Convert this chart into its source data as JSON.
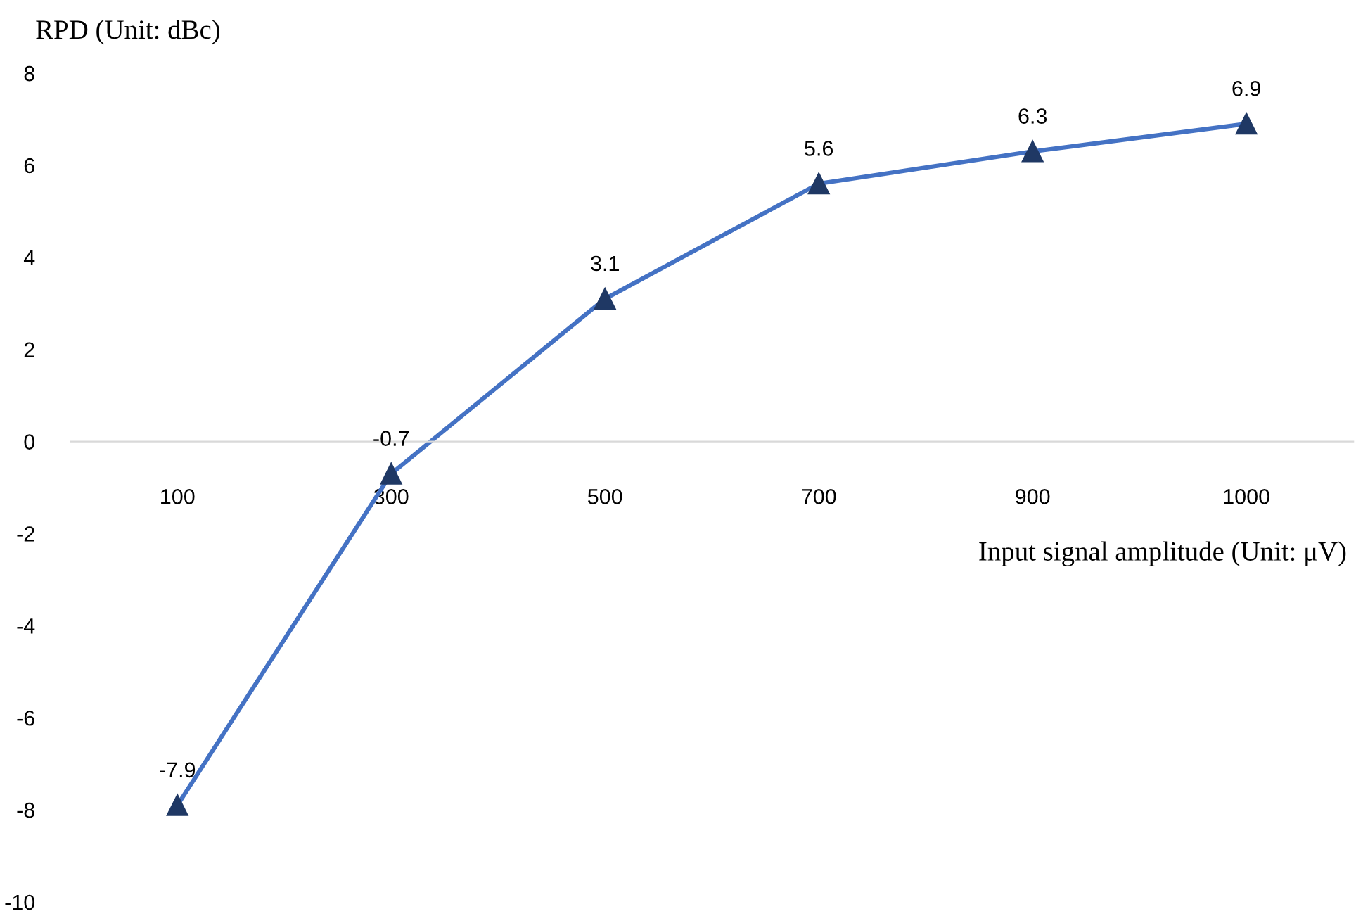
{
  "chart_data": {
    "type": "line",
    "ylabel": "RPD (Unit: dBc)",
    "xlabel": "Input signal amplitude (Unit: μV)",
    "categories": [
      "100",
      "300",
      "500",
      "700",
      "900",
      "1000"
    ],
    "series": [
      {
        "color": "#4472c4",
        "values": [
          -7.9,
          -0.7,
          3.1,
          5.6,
          6.3,
          6.9
        ]
      }
    ],
    "ylim": [
      -10,
      8
    ],
    "yticks": [
      -10,
      -8,
      -6,
      -4,
      -2,
      0,
      2,
      4,
      6,
      8
    ],
    "marker": "triangle",
    "line_style": "solid",
    "data_labels": true,
    "grid": false,
    "legend": false
  }
}
